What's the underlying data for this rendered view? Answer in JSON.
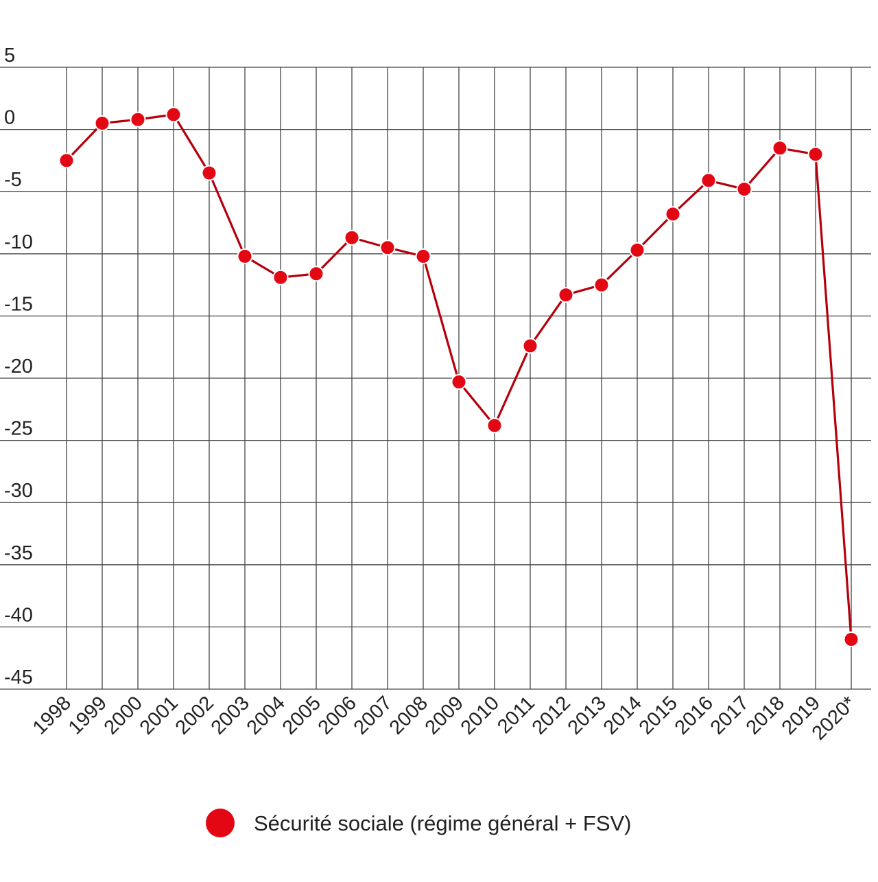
{
  "chart_data": {
    "type": "line",
    "title": "",
    "xlabel": "",
    "ylabel": "",
    "categories": [
      "1998",
      "1999",
      "2000",
      "2001",
      "2002",
      "2003",
      "2004",
      "2005",
      "2006",
      "2007",
      "2008",
      "2009",
      "2010",
      "2011",
      "2012",
      "2013",
      "2014",
      "2015",
      "2016",
      "2017",
      "2018",
      "2019",
      "2020*"
    ],
    "series": [
      {
        "name": "Sécurité sociale (régime général + FSV)",
        "color": "#e30613",
        "line_color": "#b5000c",
        "values": [
          -2.5,
          0.5,
          0.8,
          1.2,
          -3.5,
          -10.2,
          -11.9,
          -11.6,
          -8.7,
          -9.5,
          -10.2,
          -20.3,
          -23.8,
          -17.4,
          -13.3,
          -12.5,
          -9.7,
          -6.8,
          -4.1,
          -4.8,
          -1.5,
          -2.0,
          -41.0
        ]
      }
    ],
    "ylim": [
      -45,
      5
    ],
    "y_ticks": [
      5,
      0,
      -5,
      -10,
      -15,
      -20,
      -25,
      -30,
      -35,
      -40,
      -45
    ],
    "grid": true,
    "legend_position": "bottom-center"
  }
}
